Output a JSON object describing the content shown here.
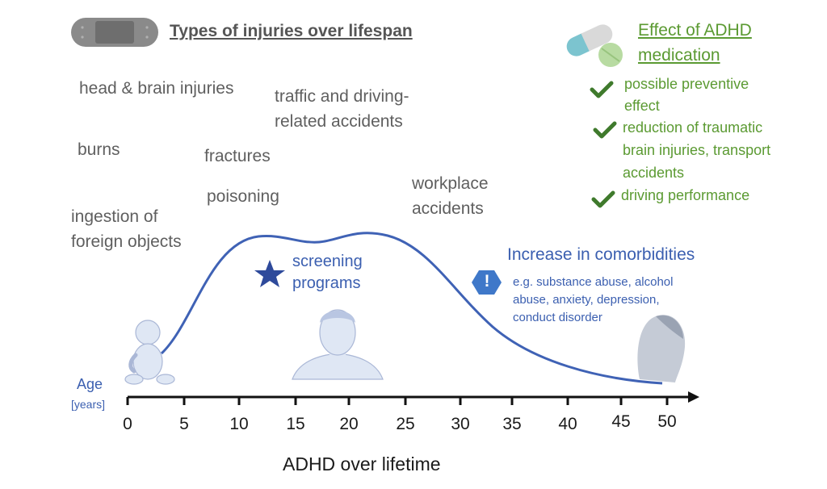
{
  "injury_section": {
    "title": "Types of injuries over lifespan",
    "items": [
      "head & brain injuries",
      "traffic and driving-",
      "related  accidents",
      "burns",
      "fractures",
      "poisoning",
      "workplace",
      "accidents",
      "ingestion of",
      "foreign objects"
    ]
  },
  "medication_section": {
    "title_line1": "Effect of ADHD",
    "title_line2": "medication",
    "items": [
      "possible preventive",
      "effect",
      "reduction of traumatic",
      "brain injuries, transport",
      "accidents",
      "driving performance"
    ]
  },
  "screening": {
    "line1": "screening",
    "line2": "programs"
  },
  "comorbidities": {
    "title": "Increase in comorbidities",
    "line1": "e.g. substance abuse,  alcohol",
    "line2": "abuse, anxiety, depression,",
    "line3": "conduct disorder",
    "alert_symbol": "!"
  },
  "axis": {
    "label": "Age",
    "unit": "[years]",
    "ticks": [
      "0",
      "5",
      "10",
      "15",
      "20",
      "25",
      "30",
      "35",
      "40",
      "45",
      "50"
    ]
  },
  "caption": "ADHD over lifetime",
  "colors": {
    "curve": "#3f62b5",
    "green": "#5b9a32",
    "gray_text": "#5f5f5f",
    "star": "#2e4a9b",
    "alert": "#3f78c9"
  },
  "icons": [
    "bandage-icon",
    "pill-capsule-icon",
    "tablet-icon",
    "check-icon",
    "star-icon",
    "alert-hexagon-icon",
    "baby-icon",
    "adult-face-icon",
    "elderly-head-icon"
  ]
}
